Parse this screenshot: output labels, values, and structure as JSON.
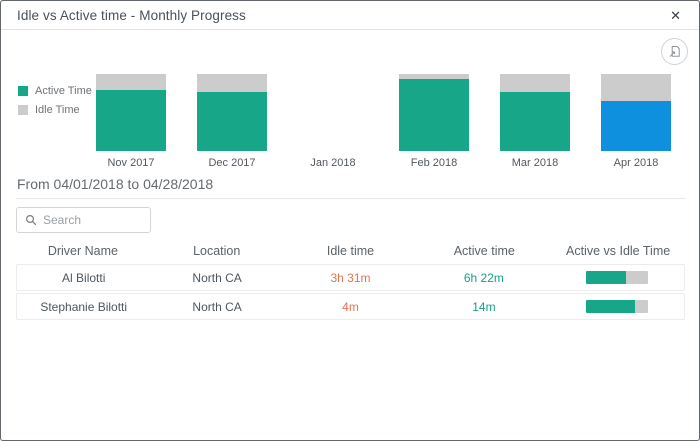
{
  "dialog": {
    "title": "Idle vs Active time - Monthly Progress",
    "close_glyph": "✕"
  },
  "toolbar": {
    "export_icon": "export-chart-to-image"
  },
  "chart_data": {
    "type": "bar",
    "stacked": true,
    "title": "",
    "xlabel": "",
    "ylabel": "",
    "units": "% of month total (estimated from bar heights)",
    "ylim": [
      0,
      100
    ],
    "grid": false,
    "legend_position": "left",
    "categories": [
      "Nov 2017",
      "Dec 2017",
      "Jan 2018",
      "Feb 2018",
      "Mar 2018",
      "Apr 2018"
    ],
    "series": [
      {
        "name": "Active Time",
        "color": "#18a689",
        "values": [
          79,
          76,
          0,
          93,
          77,
          65
        ]
      },
      {
        "name": "Idle Time",
        "color": "#cccccc",
        "values": [
          21,
          24,
          0,
          7,
          23,
          35
        ]
      }
    ],
    "highlight": {
      "category": "Apr 2018",
      "active_color": "#0f90de",
      "meaning": "selected month"
    }
  },
  "period_heading": "From 04/01/2018 to 04/28/2018",
  "search": {
    "placeholder": "Search"
  },
  "table": {
    "columns": [
      "Driver Name",
      "Location",
      "Idle time",
      "Active time",
      "Active vs Idle Time"
    ],
    "rows": [
      {
        "driver": "Al Bilotti",
        "location": "North CA",
        "idle": "3h 31m",
        "active": "6h 22m",
        "active_pct": 64
      },
      {
        "driver": "Stephanie Bilotti",
        "location": "North CA",
        "idle": "4m",
        "active": "14m",
        "active_pct": 78
      }
    ]
  },
  "colors": {
    "active": "#18a689",
    "idle": "#cccccc",
    "selected_month": "#0f90de",
    "idle_text": "#e57352",
    "active_text": "#18a085",
    "progress_track": "#cccccc"
  }
}
